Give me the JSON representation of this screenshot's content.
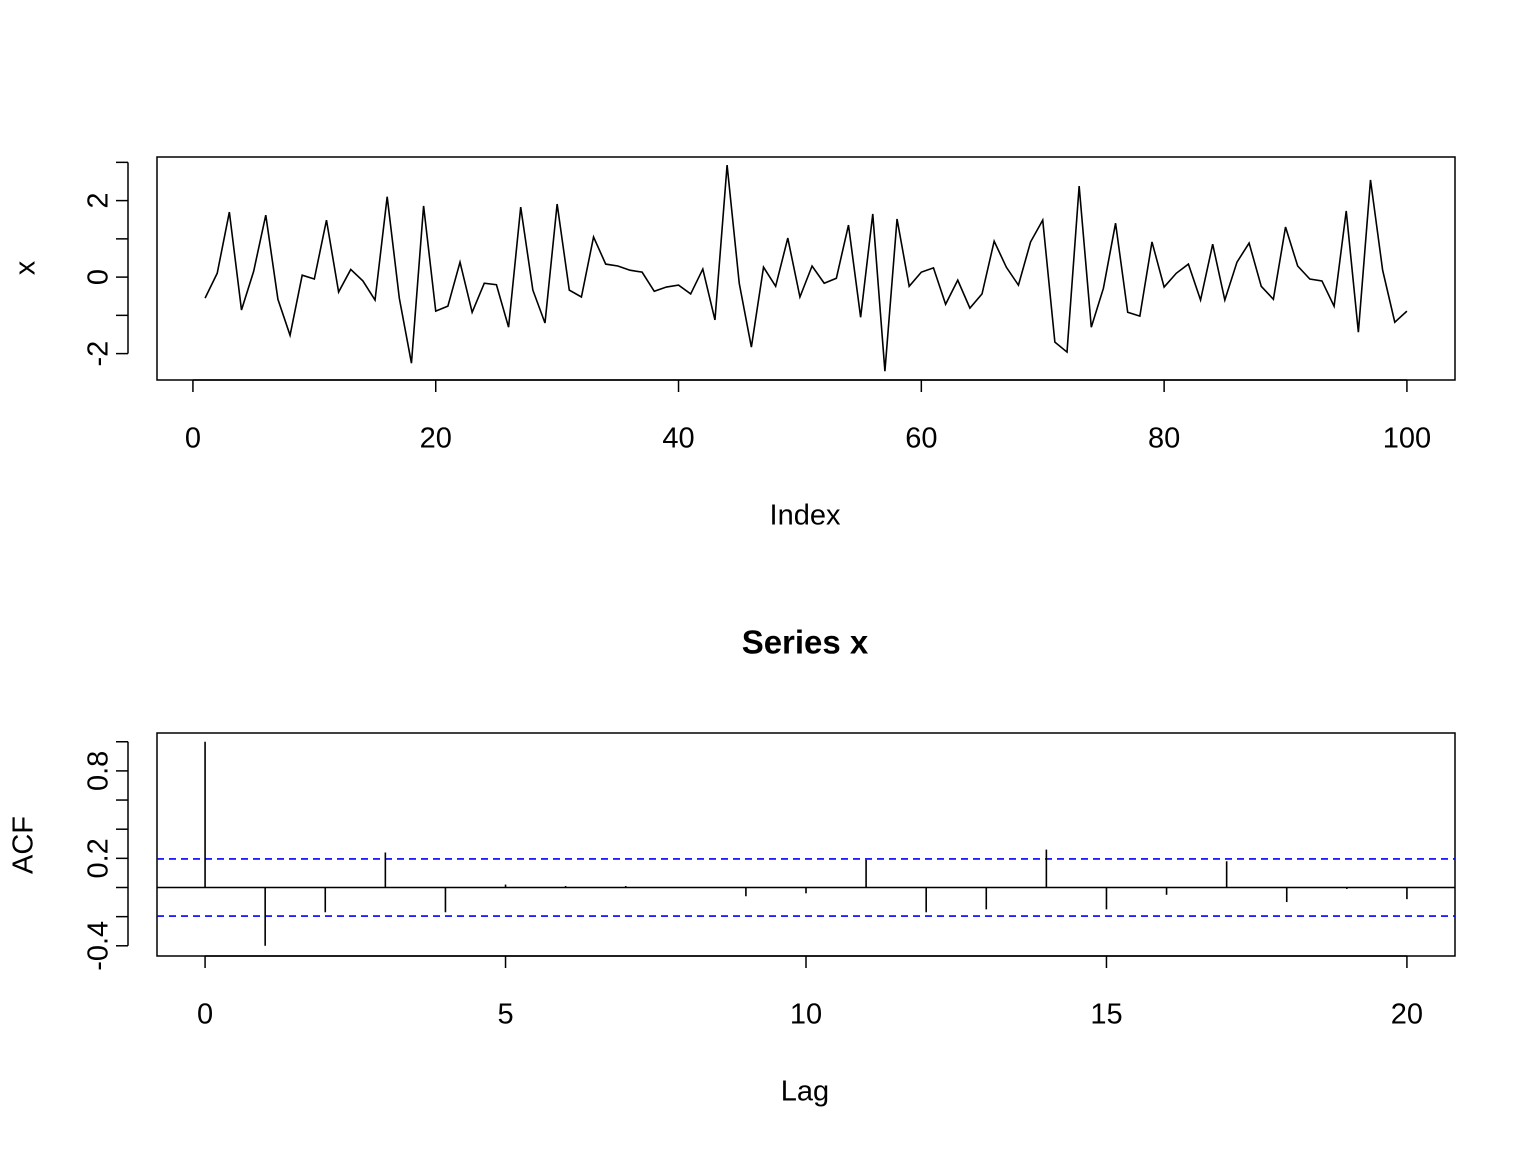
{
  "chart_data": [
    {
      "type": "line",
      "xlabel": "Index",
      "ylabel": "x",
      "color": "#000000",
      "x": [
        1,
        2,
        3,
        4,
        5,
        6,
        7,
        8,
        9,
        10,
        11,
        12,
        13,
        14,
        15,
        16,
        17,
        18,
        19,
        20,
        21,
        22,
        23,
        24,
        25,
        26,
        27,
        28,
        29,
        30,
        31,
        32,
        33,
        34,
        35,
        36,
        37,
        38,
        39,
        40,
        41,
        42,
        43,
        44,
        45,
        46,
        47,
        48,
        49,
        50,
        51,
        52,
        53,
        54,
        55,
        56,
        57,
        58,
        59,
        60,
        61,
        62,
        63,
        64,
        65,
        66,
        67,
        68,
        69,
        70,
        71,
        72,
        73,
        74,
        75,
        76,
        77,
        78,
        79,
        80,
        81,
        82,
        83,
        84,
        85,
        86,
        87,
        88,
        89,
        90,
        91,
        92,
        93,
        94,
        95,
        96,
        97,
        98,
        99,
        100
      ],
      "values": [
        -0.55,
        0.1,
        1.7,
        -0.86,
        0.15,
        1.62,
        -0.58,
        -1.52,
        0.05,
        -0.05,
        1.49,
        -0.39,
        0.2,
        -0.1,
        -0.6,
        2.1,
        -0.55,
        -2.25,
        1.86,
        -0.89,
        -0.76,
        0.39,
        -0.92,
        -0.16,
        -0.2,
        -1.31,
        1.83,
        -0.34,
        -1.2,
        1.91,
        -0.34,
        -0.52,
        1.05,
        0.34,
        0.29,
        0.18,
        0.13,
        -0.37,
        -0.26,
        -0.21,
        -0.44,
        0.21,
        -1.12,
        2.93,
        -0.16,
        -1.83,
        0.26,
        -0.24,
        1.02,
        -0.52,
        0.29,
        -0.16,
        -0.03,
        1.36,
        -1.05,
        1.65,
        -2.46,
        1.52,
        -0.24,
        0.13,
        0.24,
        -0.71,
        -0.08,
        -0.81,
        -0.44,
        0.94,
        0.26,
        -0.21,
        0.92,
        1.49,
        -1.7,
        -1.96,
        2.38,
        -1.31,
        -0.29,
        1.41,
        -0.92,
        -1.02,
        0.92,
        -0.26,
        0.1,
        0.34,
        -0.6,
        0.86,
        -0.6,
        0.39,
        0.89,
        -0.24,
        -0.58,
        1.31,
        0.29,
        -0.05,
        -0.1,
        -0.76,
        1.73,
        -1.44,
        2.54,
        0.18,
        -1.18,
        -0.89
      ],
      "xlim": [
        -2.96,
        103.96
      ],
      "ylim": [
        -2.69,
        3.14
      ],
      "xticks": [
        0,
        20,
        40,
        60,
        80,
        100
      ],
      "yticks": [
        -2,
        0,
        2
      ],
      "y_unlabeled_ticks": [
        -1,
        1,
        3
      ]
    },
    {
      "type": "stem",
      "title": "Series  x",
      "xlabel": "Lag",
      "ylabel": "ACF",
      "color": "#000000",
      "x": [
        0,
        1,
        2,
        3,
        4,
        5,
        6,
        7,
        8,
        9,
        10,
        11,
        12,
        13,
        14,
        15,
        16,
        17,
        18,
        19,
        20
      ],
      "values": [
        1.0,
        -0.4,
        -0.17,
        0.24,
        -0.17,
        0.02,
        0.01,
        0.01,
        0.0,
        -0.06,
        -0.04,
        0.19,
        -0.17,
        -0.15,
        0.26,
        -0.15,
        -0.05,
        0.18,
        -0.1,
        -0.01,
        -0.08
      ],
      "conf_lines": {
        "values": [
          0.196,
          -0.196
        ],
        "color": "#0000ff"
      },
      "xlim": [
        -0.8,
        20.8
      ],
      "ylim": [
        -0.47,
        1.06
      ],
      "xticks": [
        0,
        5,
        10,
        15,
        20
      ],
      "yticks": [
        -0.4,
        0.2,
        0.8
      ],
      "y_unlabeled_ticks": [
        -0.2,
        0,
        0.4,
        0.6,
        1.0
      ]
    }
  ]
}
